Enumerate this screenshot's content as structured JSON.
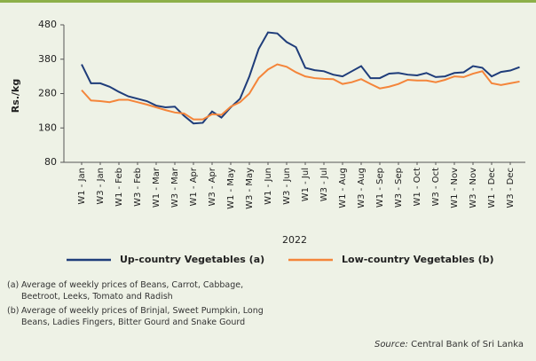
{
  "chart_data": {
    "type": "line",
    "y_label": "Rs./kg",
    "x_label": "2022",
    "categories": [
      "W1 - Jan",
      null,
      "W3 - Jan",
      null,
      "W1 - Feb",
      null,
      "W3 - Feb",
      null,
      "W1 - Mar",
      null,
      "W3 - Mar",
      null,
      "W1 - Apr",
      null,
      "W3 - Apr",
      null,
      "W1 - May",
      null,
      "W3 - May",
      null,
      "W1 - Jun",
      null,
      "W3 - Jun",
      null,
      "W1 - Jul",
      null,
      "W3 - Jul",
      null,
      "W1 - Aug",
      null,
      "W3 - Aug",
      null,
      "W1 - Sep",
      null,
      "W3 - Sep",
      null,
      "W1 - Oct",
      null,
      "W3 - Oct",
      null,
      "W1 - Nov",
      null,
      "W3 - Nov",
      null,
      "W1 - Dec",
      null,
      "W3 - Dec",
      null
    ],
    "series": [
      {
        "name": "Up-country Vegetables (a)",
        "color": "#1f3d7a",
        "values": [
          365,
          310,
          310,
          300,
          285,
          272,
          265,
          258,
          245,
          240,
          242,
          215,
          193,
          195,
          228,
          210,
          240,
          265,
          330,
          410,
          458,
          455,
          430,
          415,
          355,
          348,
          345,
          335,
          330,
          345,
          360,
          325,
          325,
          338,
          340,
          335,
          333,
          340,
          328,
          330,
          340,
          342,
          360,
          355,
          330,
          343,
          347,
          357
        ]
      },
      {
        "name": "Low-country Vegetables (b)",
        "color": "#f4853a",
        "values": [
          290,
          260,
          258,
          255,
          262,
          262,
          255,
          248,
          240,
          232,
          225,
          222,
          205,
          205,
          220,
          218,
          242,
          255,
          280,
          325,
          350,
          365,
          358,
          342,
          330,
          325,
          323,
          322,
          308,
          313,
          322,
          308,
          295,
          300,
          308,
          320,
          318,
          318,
          313,
          320,
          330,
          328,
          338,
          345,
          310,
          305,
          310,
          315
        ]
      }
    ],
    "ylim": [
      80,
      480
    ],
    "yticks": [
      80,
      180,
      280,
      380,
      480
    ],
    "grid": false,
    "notes": [
      {
        "marker": "(a)",
        "lines": [
          "Average of weekly prices of Beans, Carrot, Cabbage,",
          "Beetroot, Leeks, Tomato and Radish"
        ]
      },
      {
        "marker": "(b)",
        "lines": [
          "Average of weekly prices of Brinjal, Sweet Pumpkin, Long",
          "Beans, Ladies Fingers, Bitter Gourd and Snake Gourd"
        ]
      }
    ],
    "source_label": "Source:",
    "source": "Central Bank of Sri Lanka"
  }
}
